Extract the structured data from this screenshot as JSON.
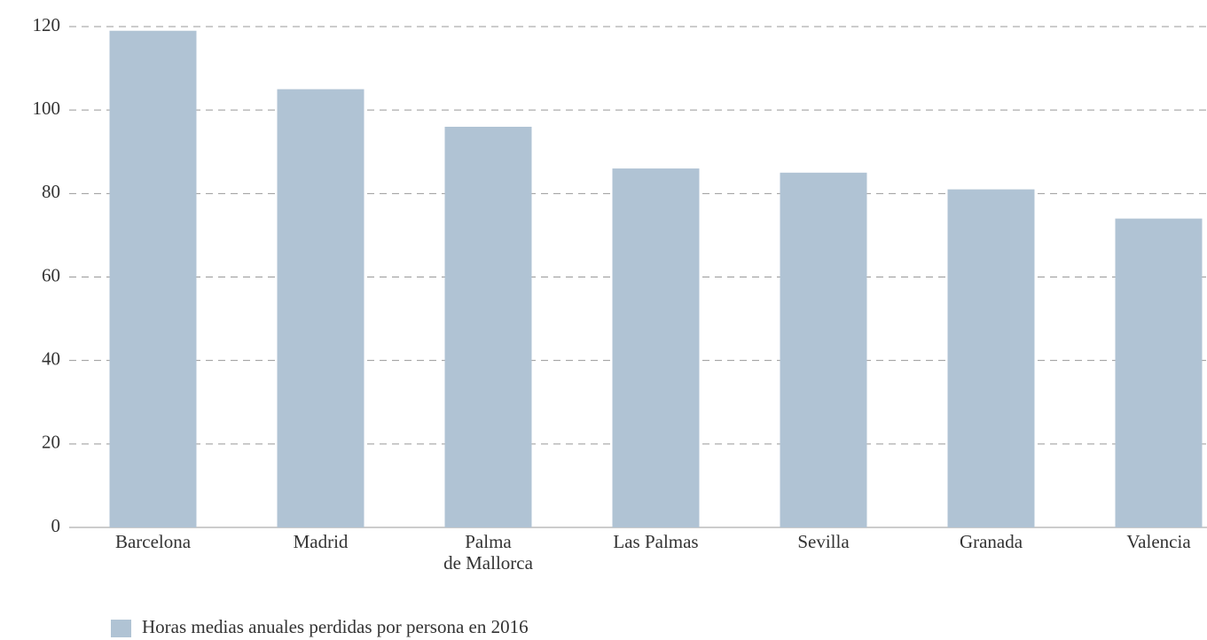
{
  "chart_data": {
    "type": "bar",
    "categories": [
      "Barcelona",
      "Madrid",
      "Palma\nde Mallorca",
      "Las Palmas",
      "Sevilla",
      "Granada",
      "Valencia"
    ],
    "series": [
      {
        "name": "Horas medias anuales perdidas por persona en 2016",
        "color": "#b0c3d4",
        "values": [
          119,
          105,
          96,
          86,
          85,
          81,
          74
        ]
      }
    ],
    "ylim": [
      0,
      120
    ],
    "yticks": [
      0,
      20,
      40,
      60,
      80,
      100,
      120
    ],
    "grid": true,
    "legend": "bottom-left"
  }
}
